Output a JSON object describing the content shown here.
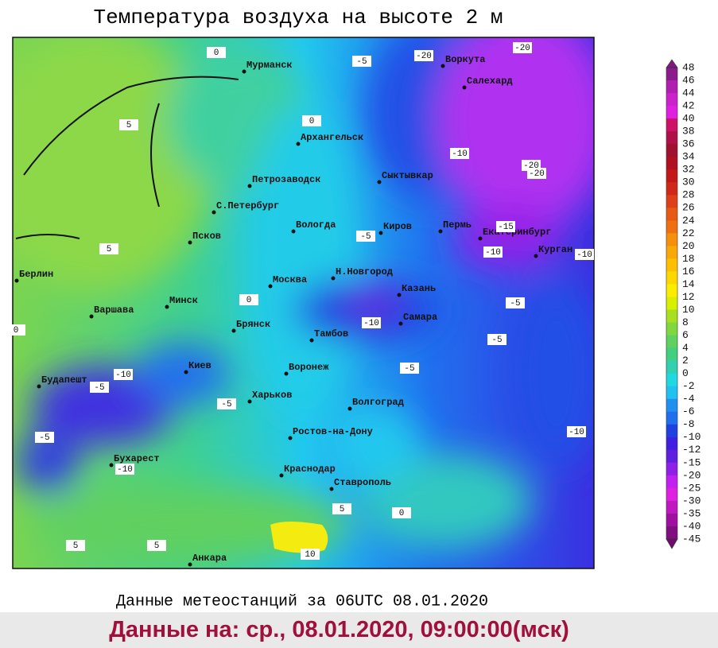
{
  "title": "Температура воздуха на высоте 2 м",
  "subtitle": "Данные метеостанций за 06UTC 08.01.2020",
  "footer": "Данные на: ср., 08.01.2020, 09:00:00(мск)",
  "cities": [
    "Мурманск",
    "Воркута",
    "Салехард",
    "Архангельск",
    "Сыктывкар",
    "Петрозаводск",
    "С.Петербург",
    "Вологда",
    "Киров",
    "Пермь",
    "Екатеринбург",
    "Курган",
    "Псков",
    "Берлин",
    "Н.Новгород",
    "Москва",
    "Казань",
    "Варшава",
    "Минск",
    "Самара",
    "Брянск",
    "Тамбов",
    "Киев",
    "Воронеж",
    "Будапешт",
    "Харьков",
    "Волгоград",
    "Ростов-на-Дону",
    "Бухарест",
    "Краснодар",
    "Ставрополь",
    "Анкара"
  ],
  "contour_labels": [
    0,
    -5,
    -20,
    -20,
    5,
    0,
    -10,
    -20,
    -20,
    -5,
    -15,
    -10,
    -10,
    5,
    0,
    -10,
    -5,
    -5,
    -10,
    -5,
    -5,
    -5,
    -5,
    -10,
    -10,
    0,
    0,
    5,
    10,
    5,
    5
  ],
  "colorbar": {
    "ticks": [
      48,
      46,
      44,
      42,
      40,
      38,
      36,
      34,
      32,
      30,
      28,
      26,
      24,
      22,
      20,
      18,
      16,
      14,
      12,
      10,
      8,
      6,
      4,
      2,
      0,
      -2,
      -4,
      -6,
      -8,
      -10,
      -12,
      -15,
      -20,
      -25,
      -30,
      -35,
      -40,
      -45
    ],
    "colors": [
      "#8b1a8b",
      "#b01fb0",
      "#cc22cc",
      "#e020e0",
      "#cc1166",
      "#b0104a",
      "#a01030",
      "#b01020",
      "#c41818",
      "#d02818",
      "#dd4018",
      "#e65a14",
      "#ee7010",
      "#f4900c",
      "#f8a808",
      "#fcc000",
      "#fcd800",
      "#fcec00",
      "#d8f000",
      "#a8e020",
      "#80d840",
      "#60d060",
      "#40d080",
      "#30d0b0",
      "#20d8e0",
      "#20c0f0",
      "#2090f0",
      "#2070ee",
      "#2040e0",
      "#4020e0",
      "#6020e0",
      "#9020e8",
      "#c020f0",
      "#e020e0",
      "#c018c0",
      "#a010a0",
      "#801080"
    ],
    "over_color": "#801880",
    "under_color": "#700c70"
  }
}
